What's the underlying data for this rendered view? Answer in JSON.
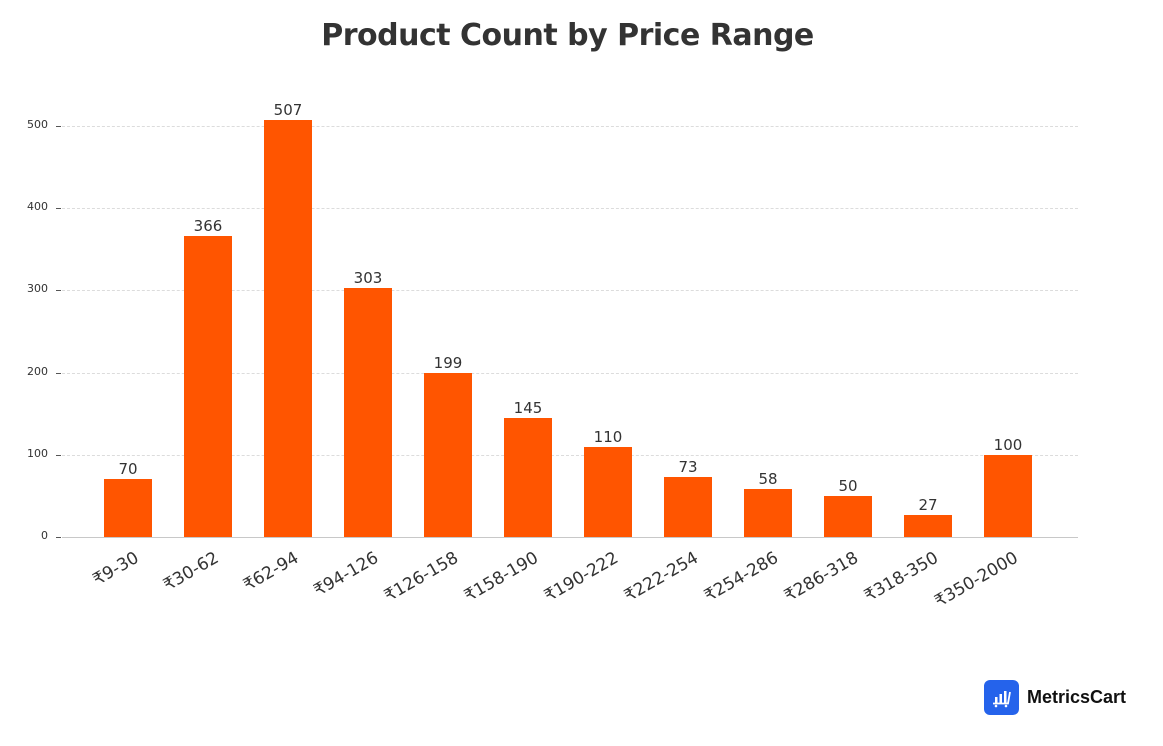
{
  "chart_data": {
    "type": "bar",
    "title": "Product Count by Price Range",
    "xlabel": "",
    "ylabel": "",
    "categories": [
      "₹9-30",
      "₹30-62",
      "₹62-94",
      "₹94-126",
      "₹126-158",
      "₹158-190",
      "₹190-222",
      "₹222-254",
      "₹254-286",
      "₹286-318",
      "₹318-350",
      "₹350-2000"
    ],
    "values": [
      70,
      366,
      507,
      303,
      199,
      145,
      110,
      73,
      58,
      50,
      27,
      100
    ],
    "ylim": [
      0,
      520
    ],
    "yticks": [
      0,
      100,
      200,
      300,
      400,
      500
    ],
    "grid": true,
    "legend": null,
    "bar_color": "#ff5500",
    "data_labels": true
  },
  "branding": {
    "name": "MetricsCart",
    "icon": "bar-chart-cart-icon",
    "icon_color": "#2563eb"
  }
}
